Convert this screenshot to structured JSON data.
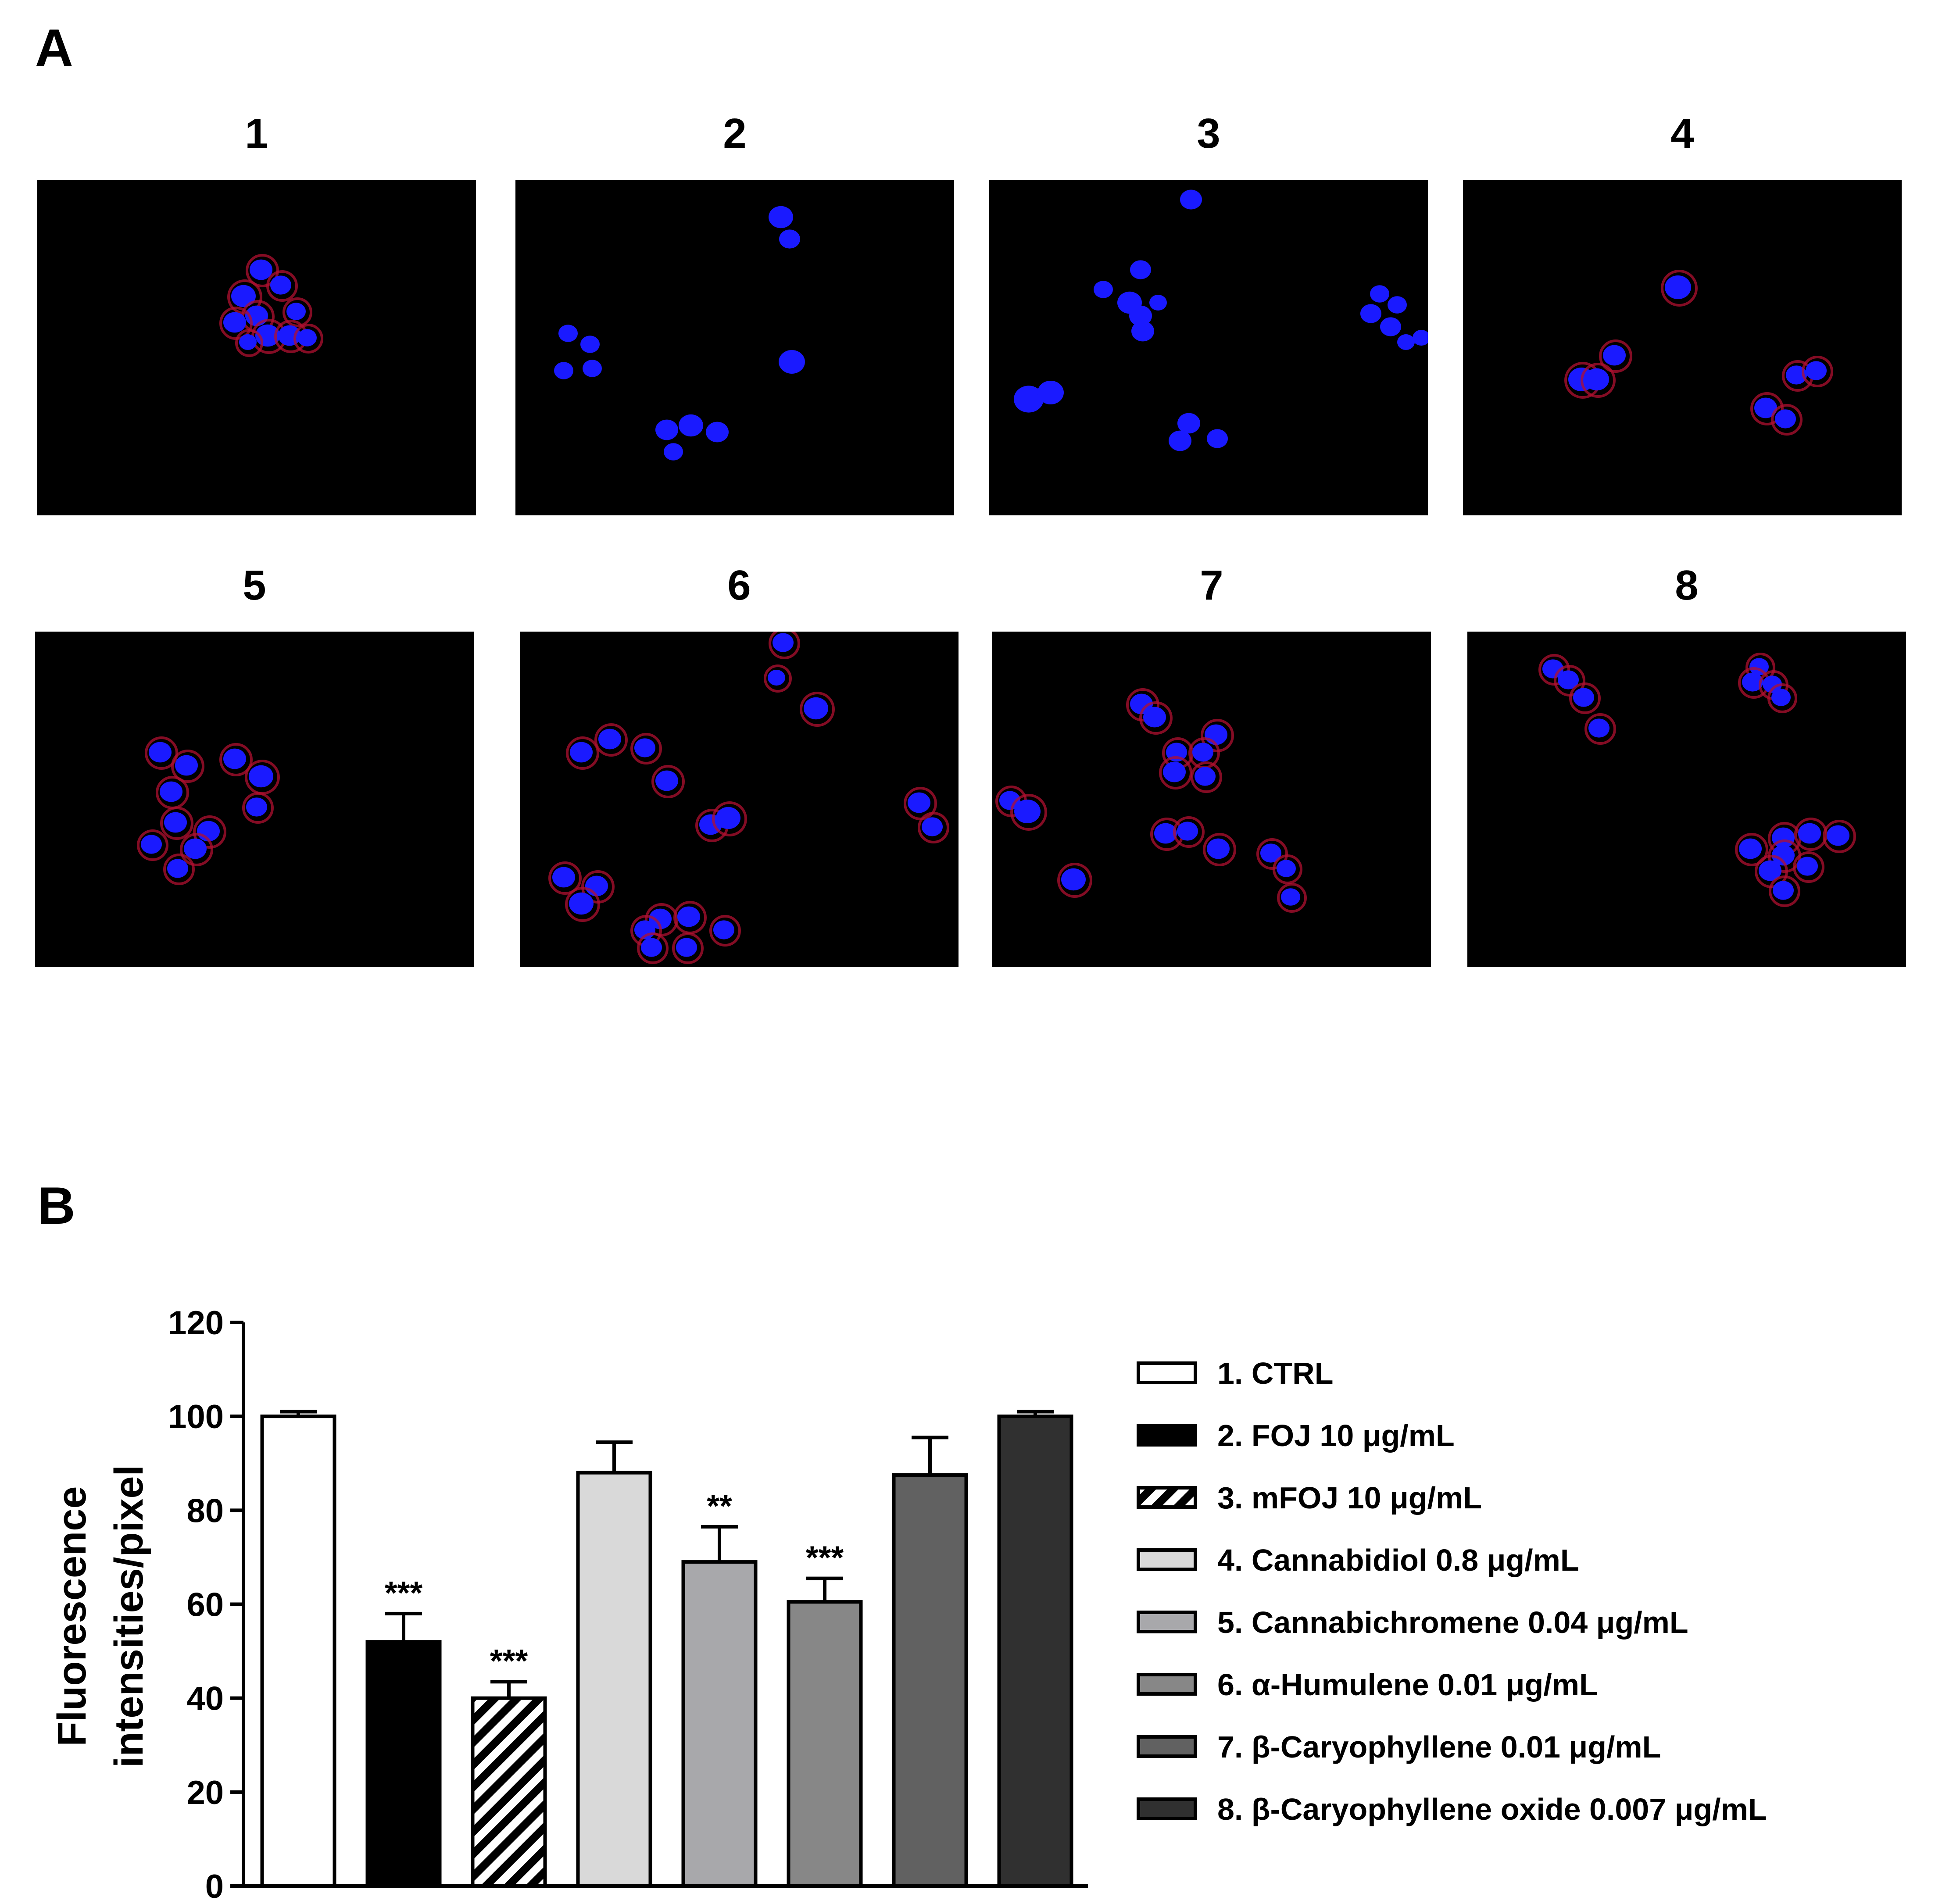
{
  "panel_a": {
    "letter": "A",
    "images": [
      {
        "label": "1"
      },
      {
        "label": "2"
      },
      {
        "label": "3"
      },
      {
        "label": "4"
      },
      {
        "label": "5"
      },
      {
        "label": "6"
      },
      {
        "label": "7"
      },
      {
        "label": "8"
      }
    ]
  },
  "panel_b": {
    "letter": "B"
  },
  "colors": {
    "nucleus": "#1a1aff",
    "membrane": "#b01030",
    "background": "#000000"
  },
  "chart_data": {
    "type": "bar",
    "ylabel_line1": "Fluorescence",
    "ylabel_line2": "intensities/pixel",
    "xlabel": "",
    "ylim": [
      0,
      120
    ],
    "yticks": [
      "0",
      "20",
      "40",
      "60",
      "80",
      "100",
      "120"
    ],
    "categories": [
      "1. CTRL",
      "2. FOJ 10 μg/mL",
      "3. mFOJ 10 μg/mL",
      "4. Cannabidiol 0.8 μg/mL",
      "5. Cannabichromene 0.04 μg/mL",
      "6. α-Humulene 0.01 μg/mL",
      "7. β-Caryophyllene 0.01 μg/mL",
      "8. β-Caryophyllene oxide 0.007 μg/mL"
    ],
    "values": [
      100,
      52,
      40,
      88,
      69,
      60.5,
      87.5,
      100
    ],
    "errors": [
      1,
      6,
      3.5,
      6.5,
      7.5,
      5,
      8,
      1
    ],
    "significance": [
      "",
      "***",
      "***",
      "",
      "**",
      "***",
      "",
      ""
    ],
    "fills": [
      "#ffffff",
      "#000000",
      "hatch",
      "#d9d9d9",
      "#a8a8ab",
      "#878787",
      "#616161",
      "#303030"
    ],
    "legend_position": "right"
  }
}
